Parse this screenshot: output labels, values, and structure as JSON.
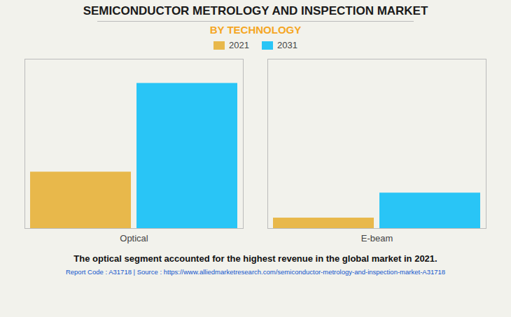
{
  "chart_data": {
    "type": "bar",
    "title": "SEMICONDUCTOR METROLOGY AND INSPECTION MARKET",
    "subtitle": "BY TECHNOLOGY",
    "categories": [
      "Optical",
      "E-beam"
    ],
    "series": [
      {
        "name": "2021",
        "color": "#E8B84B",
        "values": [
          3.5,
          0.65
        ]
      },
      {
        "name": "2031",
        "color": "#29C5F6",
        "values": [
          9.0,
          2.2
        ]
      }
    ],
    "ylim": [
      0,
      10.5
    ],
    "yticks": [],
    "grid": false,
    "tick_labels": "x",
    "legend": "top",
    "annotations": [
      "The optical segment accounted for the highest revenue in the global market in 2021.",
      "Report Code : A31718  |  Source : https://www.alliedmarketresearch.com/semiconductor-metrology-and-inspection-market-A31718"
    ]
  }
}
